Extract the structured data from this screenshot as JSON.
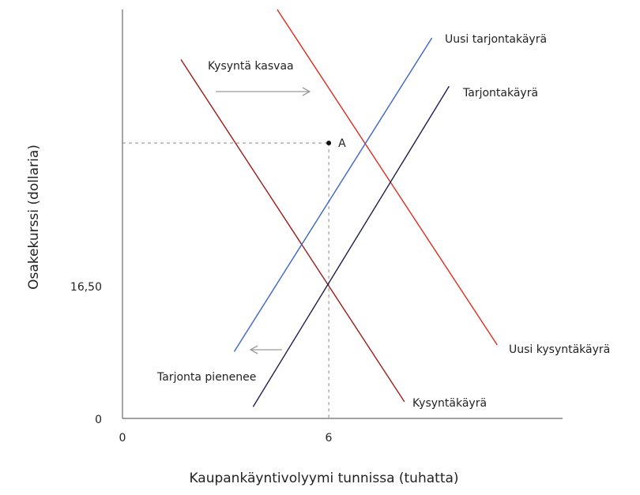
{
  "chart_data": {
    "type": "line",
    "title": "",
    "xlabel": "Kaupankäyntivolyymi tunnissa (tuhatta)",
    "ylabel": "Osakekurssi (dollaria)",
    "xlim": [
      0,
      12.8
    ],
    "ylim": [
      0,
      24.5
    ],
    "x_ticks": [
      {
        "value": 0,
        "label": "0"
      },
      {
        "value": 6,
        "label": "6"
      }
    ],
    "y_ticks": [
      {
        "value": 0,
        "label": "0"
      },
      {
        "value": 16.5,
        "label": "16,50"
      }
    ],
    "grid": false,
    "series": [
      {
        "name": "Kysyntäkäyrä",
        "color": "#a01818",
        "points": [
          [
            1.7,
            21.5
          ],
          [
            8.2,
            1.0
          ]
        ]
      },
      {
        "name": "Uusi kysyntäkäyrä",
        "color": "#e02a1e",
        "points": [
          [
            4.5,
            24.5
          ],
          [
            10.9,
            4.4
          ]
        ]
      },
      {
        "name": "Tarjontakäyrä",
        "color": "#1c1f4e",
        "points": [
          [
            3.8,
            0.7
          ],
          [
            9.5,
            19.9
          ]
        ]
      },
      {
        "name": "Uusi tarjontakäyrä",
        "color": "#3b63c9",
        "points": [
          [
            3.25,
            4.0
          ],
          [
            9.0,
            22.8
          ]
        ]
      }
    ],
    "points": [
      {
        "name": "A",
        "x": 6,
        "y": 16.5
      }
    ],
    "annotations": [
      {
        "text": "Kysyntä kasvaa",
        "direction": "right"
      },
      {
        "text": "Tarjonta pienenee",
        "direction": "left"
      }
    ]
  }
}
